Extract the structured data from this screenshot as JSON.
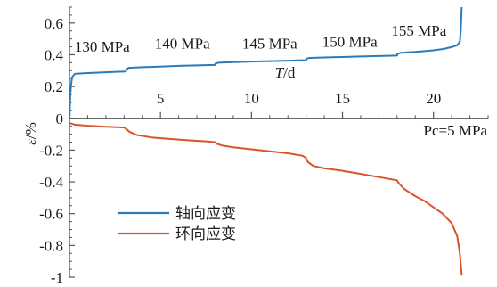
{
  "chart_data": {
    "type": "line",
    "xlabel": "T/d",
    "ylabel": "ε/%",
    "xlim": [
      0,
      23
    ],
    "ylim": [
      -1,
      0.7
    ],
    "x_ticks": [
      5,
      10,
      15,
      20
    ],
    "y_ticks": [
      -1,
      -0.8,
      -0.6,
      -0.4,
      -0.2,
      0,
      0.2,
      0.4,
      0.6
    ],
    "y_tick_labels": [
      "-1",
      "-0.8",
      "-0.6",
      "-0.4",
      "-0.2",
      "0",
      "0.2",
      "0.4",
      "0.6"
    ],
    "x_tick_labels": [
      "5",
      "10",
      "15",
      "20"
    ],
    "confining_pressure": "Pc=5 MPa",
    "stress_stages": [
      {
        "label": "130 MPa",
        "x": 1.8
      },
      {
        "label": "140 MPa",
        "x": 6.2
      },
      {
        "label": "145 MPa",
        "x": 11.0
      },
      {
        "label": "150 MPa",
        "x": 15.4
      },
      {
        "label": "155 MPa",
        "x": 19.2
      }
    ],
    "grid": false,
    "legend_position": "bottom-left",
    "series": [
      {
        "name": "轴向应变",
        "color": "#2b7bba",
        "x": [
          0,
          0.05,
          0.1,
          0.15,
          0.3,
          1.0,
          2.0,
          3.1,
          3.12,
          3.25,
          4.0,
          5.0,
          6.0,
          7.0,
          8.0,
          8.02,
          8.2,
          9.0,
          10.0,
          11.0,
          12.0,
          13.0,
          13.02,
          13.2,
          14.0,
          15.0,
          16.0,
          17.0,
          18.0,
          18.02,
          18.2,
          19.0,
          20.0,
          20.5,
          21.0,
          21.3,
          21.45,
          21.5,
          21.55
        ],
        "y": [
          0,
          0.15,
          0.22,
          0.26,
          0.28,
          0.285,
          0.29,
          0.295,
          0.305,
          0.318,
          0.322,
          0.326,
          0.33,
          0.333,
          0.336,
          0.345,
          0.35,
          0.353,
          0.357,
          0.36,
          0.363,
          0.366,
          0.375,
          0.38,
          0.383,
          0.386,
          0.389,
          0.392,
          0.395,
          0.405,
          0.412,
          0.418,
          0.428,
          0.436,
          0.448,
          0.46,
          0.48,
          0.55,
          0.7
        ]
      },
      {
        "name": "环向应变",
        "color": "#d9542b",
        "x": [
          0,
          0.3,
          1.0,
          2.0,
          3.0,
          3.1,
          3.3,
          3.7,
          4.5,
          5.5,
          6.5,
          7.5,
          8.0,
          8.1,
          8.4,
          9.0,
          10.0,
          11.0,
          12.0,
          12.8,
          13.0,
          13.1,
          13.4,
          14.0,
          15.0,
          16.0,
          17.0,
          18.0,
          18.1,
          18.4,
          19.0,
          19.5,
          20.0,
          20.5,
          21.0,
          21.3,
          21.45,
          21.55
        ],
        "y": [
          -0.03,
          -0.04,
          -0.047,
          -0.053,
          -0.058,
          -0.065,
          -0.085,
          -0.105,
          -0.12,
          -0.13,
          -0.138,
          -0.145,
          -0.15,
          -0.16,
          -0.172,
          -0.182,
          -0.195,
          -0.208,
          -0.22,
          -0.235,
          -0.25,
          -0.275,
          -0.3,
          -0.315,
          -0.33,
          -0.35,
          -0.37,
          -0.39,
          -0.41,
          -0.445,
          -0.49,
          -0.52,
          -0.56,
          -0.6,
          -0.66,
          -0.74,
          -0.85,
          -0.99
        ]
      }
    ]
  }
}
